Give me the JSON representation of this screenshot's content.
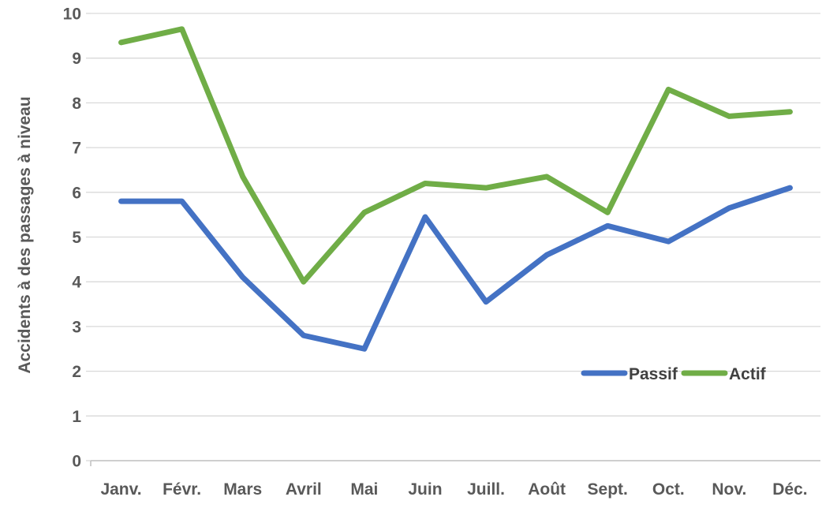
{
  "chart_data": {
    "type": "line",
    "categories": [
      "Janv.",
      "Févr.",
      "Mars",
      "Avril",
      "Mai",
      "Juin",
      "Juill.",
      "Août",
      "Sept.",
      "Oct.",
      "Nov.",
      "Déc."
    ],
    "series": [
      {
        "name": "Passif",
        "color": "#4472C4",
        "values": [
          5.8,
          5.8,
          4.1,
          2.8,
          2.5,
          5.45,
          3.55,
          4.6,
          5.25,
          4.9,
          5.65,
          6.1
        ]
      },
      {
        "name": "Actif",
        "color": "#70AD47",
        "values": [
          9.35,
          9.65,
          6.35,
          4.0,
          5.55,
          6.2,
          6.1,
          6.35,
          5.55,
          8.3,
          7.7,
          7.8
        ]
      }
    ],
    "title": "",
    "xlabel": "",
    "ylabel": "Accidents à des passages à niveau",
    "ylim": [
      0,
      10
    ],
    "ytick_step": 1,
    "yticks": [
      0,
      1,
      2,
      3,
      4,
      5,
      6,
      7,
      8,
      9,
      10
    ],
    "grid": true,
    "legend": [
      "Passif",
      "Actif"
    ],
    "legend_position": "inside-right-lower"
  },
  "colors": {
    "gridline": "#D9D9D9",
    "axis_line": "#BFBFBF",
    "tick_text": "#595959",
    "legend_text": "#404040",
    "background": "#FFFFFF"
  }
}
